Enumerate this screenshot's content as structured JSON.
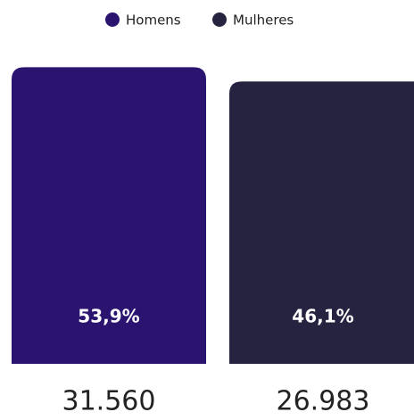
{
  "chart_data": {
    "type": "bar",
    "categories": [
      "31.560",
      "26.983"
    ],
    "series": [
      {
        "name": "Homens",
        "color": "#2a1470",
        "values": [
          53.9,
          null
        ],
        "value_labels": [
          "53,9%",
          null
        ]
      },
      {
        "name": "Mulheres",
        "color": "#25233f",
        "values": [
          null,
          46.1
        ],
        "value_labels": [
          null,
          "46,1%"
        ]
      }
    ],
    "ylim": [
      -108,
      56
    ]
  }
}
